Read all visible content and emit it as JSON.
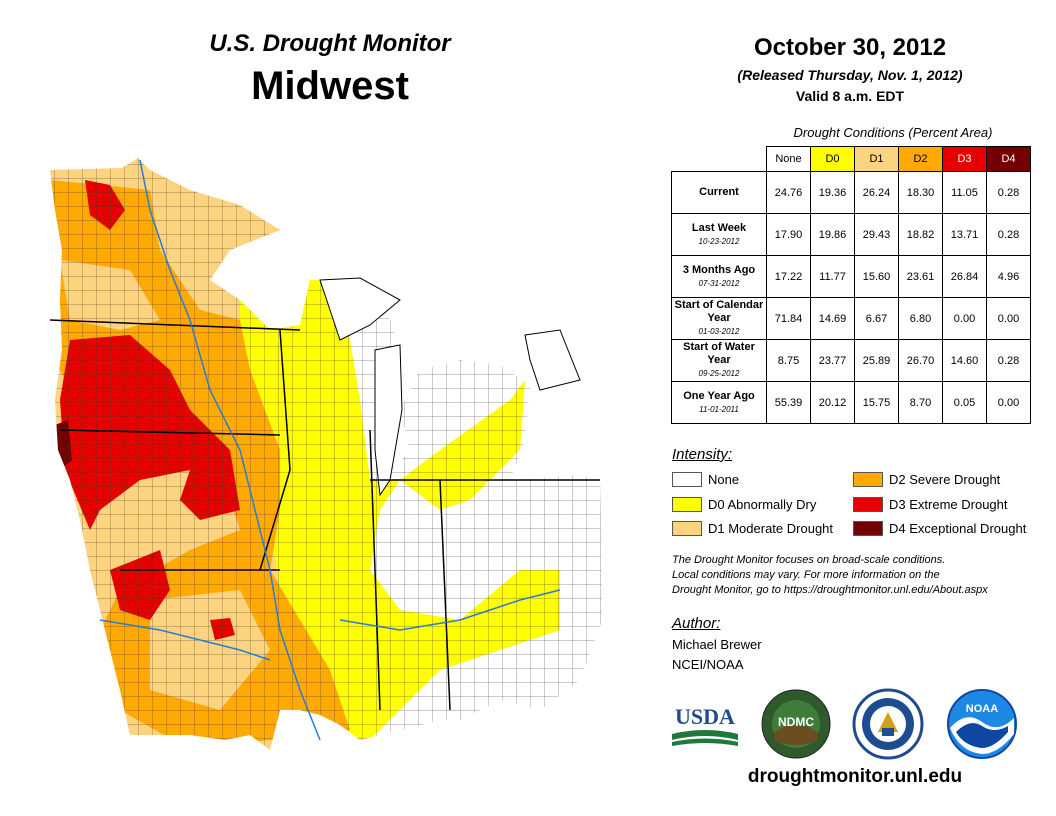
{
  "header": {
    "subtitle": "U.S. Drought Monitor",
    "region": "Midwest",
    "date": "October 30, 2012",
    "released": "(Released Thursday, Nov. 1, 2012)",
    "valid": "Valid 8 a.m. EDT"
  },
  "table": {
    "caption": "Drought Conditions (Percent Area)",
    "columns": [
      "None",
      "D0",
      "D1",
      "D2",
      "D3",
      "D4"
    ],
    "rows": [
      {
        "label": "Current",
        "date": "",
        "values": [
          "24.76",
          "19.36",
          "26.24",
          "18.30",
          "11.05",
          "0.28"
        ]
      },
      {
        "label": "Last Week",
        "date": "10-23-2012",
        "values": [
          "17.90",
          "19.86",
          "29.43",
          "18.82",
          "13.71",
          "0.28"
        ]
      },
      {
        "label": "3 Months Ago",
        "date": "07-31-2012",
        "values": [
          "17.22",
          "11.77",
          "15.60",
          "23.61",
          "26.84",
          "4.96"
        ]
      },
      {
        "label": "Start of Calendar Year",
        "date": "01-03-2012",
        "values": [
          "71.84",
          "14.69",
          "6.67",
          "6.80",
          "0.00",
          "0.00"
        ]
      },
      {
        "label": "Start of Water Year",
        "date": "09-25-2012",
        "values": [
          "8.75",
          "23.77",
          "25.89",
          "26.70",
          "14.60",
          "0.28"
        ]
      },
      {
        "label": "One Year Ago",
        "date": "11-01-2011",
        "values": [
          "55.39",
          "20.12",
          "15.75",
          "8.70",
          "0.05",
          "0.00"
        ]
      }
    ]
  },
  "legend": {
    "title": "Intensity:",
    "items": [
      {
        "label": "None",
        "color": "#ffffff"
      },
      {
        "label": "D0 Abnormally Dry",
        "color": "#ffff00"
      },
      {
        "label": "D1 Moderate Drought",
        "color": "#fcd37f"
      },
      {
        "label": "D2 Severe Drought",
        "color": "#ffaa00"
      },
      {
        "label": "D3 Extreme Drought",
        "color": "#e60000"
      },
      {
        "label": "D4 Exceptional Drought",
        "color": "#730000"
      }
    ]
  },
  "note": {
    "line1": "The Drought Monitor focuses on broad-scale conditions.",
    "line2": "Local conditions may vary. For more information on the",
    "line3": "Drought Monitor, go to https://droughtmonitor.unl.edu/About.aspx"
  },
  "author": {
    "title": "Author:",
    "name": "Michael Brewer",
    "org": "NCEI/NOAA"
  },
  "logos": {
    "usda": "USDA",
    "ndmc": "NDMC",
    "noaa": "NOAA"
  },
  "footer": {
    "website": "droughtmonitor.unl.edu"
  }
}
